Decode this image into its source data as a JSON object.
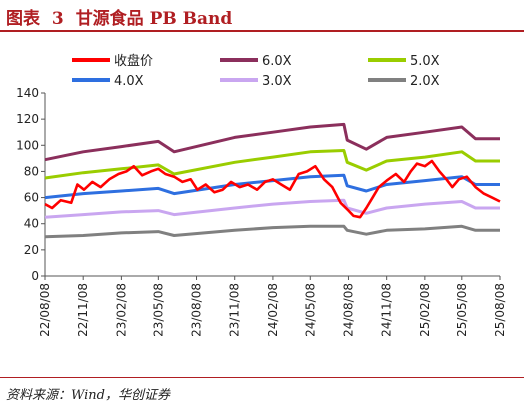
{
  "header": {
    "figure_label": "图表",
    "figure_number": "3",
    "title": "甘源食品 PB Band"
  },
  "footer": {
    "source": "资料来源：Wind，华创证券"
  },
  "colors": {
    "accent": "#b01e22"
  },
  "chart_data": {
    "type": "line",
    "title": "甘源食品 PB Band",
    "xlabel": "",
    "ylabel": "",
    "ylim": [
      0,
      140
    ],
    "yticks": [
      0,
      20,
      40,
      60,
      80,
      100,
      120,
      140
    ],
    "grid": false,
    "legend_position": "top",
    "x_tick_labels": [
      "22/08/08",
      "22/11/08",
      "23/02/08",
      "23/05/08",
      "23/08/08",
      "23/11/08",
      "24/02/08",
      "24/05/08",
      "24/08/08",
      "24/11/08",
      "25/02/08",
      "25/05/08",
      "25/08/08"
    ],
    "x_tick_dates": [
      "2022-08-08",
      "2022-11-08",
      "2023-02-08",
      "2023-05-08",
      "2023-08-08",
      "2023-11-08",
      "2024-02-08",
      "2024-05-08",
      "2024-08-08",
      "2024-11-08",
      "2025-02-08",
      "2025-05-08",
      "2025-08-08"
    ],
    "x_range": [
      "2022-08-08",
      "2025-08-08"
    ],
    "series": [
      {
        "name": "收盘价",
        "color": "#ff0000",
        "dates": [
          "2022-08-08",
          "2022-08-25",
          "2022-09-15",
          "2022-10-10",
          "2022-10-25",
          "2022-11-10",
          "2022-11-30",
          "2022-12-20",
          "2023-01-10",
          "2023-02-01",
          "2023-02-20",
          "2023-03-10",
          "2023-03-30",
          "2023-04-20",
          "2023-05-08",
          "2023-05-25",
          "2023-06-15",
          "2023-07-05",
          "2023-07-25",
          "2023-08-10",
          "2023-08-30",
          "2023-09-20",
          "2023-10-10",
          "2023-10-30",
          "2023-11-20",
          "2023-12-10",
          "2024-01-01",
          "2024-01-20",
          "2024-02-08",
          "2024-02-28",
          "2024-03-20",
          "2024-04-10",
          "2024-04-30",
          "2024-05-20",
          "2024-06-10",
          "2024-06-30",
          "2024-07-20",
          "2024-08-08",
          "2024-08-20",
          "2024-09-05",
          "2024-09-20",
          "2024-10-05",
          "2024-10-20",
          "2024-11-08",
          "2024-11-30",
          "2024-12-20",
          "2025-01-05",
          "2025-01-20",
          "2025-02-08",
          "2025-02-25",
          "2025-03-15",
          "2025-04-01",
          "2025-04-15",
          "2025-05-01",
          "2025-05-20",
          "2025-06-10",
          "2025-06-30",
          "2025-07-20",
          "2025-08-08"
        ],
        "values": [
          55,
          52,
          58,
          56,
          70,
          66,
          72,
          68,
          74,
          78,
          80,
          84,
          77,
          80,
          82,
          78,
          76,
          72,
          74,
          66,
          70,
          64,
          66,
          72,
          68,
          70,
          66,
          72,
          74,
          70,
          66,
          78,
          80,
          84,
          74,
          68,
          56,
          50,
          46,
          45,
          52,
          60,
          68,
          73,
          78,
          72,
          80,
          86,
          84,
          88,
          80,
          74,
          68,
          74,
          76,
          68,
          63,
          60,
          57
        ]
      },
      {
        "name": "6.0X",
        "color": "#8b2f5c",
        "dates": [
          "2022-08-08",
          "2022-11-08",
          "2023-02-08",
          "2023-05-08",
          "2023-06-15",
          "2023-11-08",
          "2024-02-08",
          "2024-05-08",
          "2024-07-28",
          "2024-08-05",
          "2024-09-20",
          "2024-11-08",
          "2025-02-08",
          "2025-05-08",
          "2025-06-10",
          "2025-08-08"
        ],
        "values": [
          89,
          95,
          99,
          103,
          95,
          106,
          110,
          114,
          116,
          104,
          97,
          106,
          110,
          114,
          105,
          105
        ]
      },
      {
        "name": "5.0X",
        "color": "#9acd00",
        "dates": [
          "2022-08-08",
          "2022-11-08",
          "2023-02-08",
          "2023-05-08",
          "2023-06-15",
          "2023-11-08",
          "2024-02-08",
          "2024-05-08",
          "2024-07-28",
          "2024-08-05",
          "2024-09-20",
          "2024-11-08",
          "2025-02-08",
          "2025-05-08",
          "2025-06-10",
          "2025-08-08"
        ],
        "values": [
          75,
          79,
          82,
          85,
          78,
          87,
          91,
          95,
          96,
          87,
          81,
          88,
          91,
          95,
          88,
          88
        ]
      },
      {
        "name": "4.0X",
        "color": "#2e6fe0",
        "dates": [
          "2022-08-08",
          "2022-11-08",
          "2023-02-08",
          "2023-05-08",
          "2023-06-15",
          "2023-11-08",
          "2024-02-08",
          "2024-05-08",
          "2024-07-28",
          "2024-08-05",
          "2024-09-20",
          "2024-11-08",
          "2025-02-08",
          "2025-05-08",
          "2025-06-10",
          "2025-08-08"
        ],
        "values": [
          60,
          63,
          65,
          67,
          63,
          70,
          73,
          76,
          77,
          69,
          65,
          70,
          73,
          76,
          70,
          70
        ]
      },
      {
        "name": "3.0X",
        "color": "#c9a6f0",
        "dates": [
          "2022-08-08",
          "2022-11-08",
          "2023-02-08",
          "2023-05-08",
          "2023-06-15",
          "2023-11-08",
          "2024-02-08",
          "2024-05-08",
          "2024-07-28",
          "2024-08-05",
          "2024-09-20",
          "2024-11-08",
          "2025-02-08",
          "2025-05-08",
          "2025-06-10",
          "2025-08-08"
        ],
        "values": [
          45,
          47,
          49,
          50,
          47,
          52,
          55,
          57,
          58,
          52,
          48,
          52,
          55,
          57,
          52,
          52
        ]
      },
      {
        "name": "2.0X",
        "color": "#808080",
        "dates": [
          "2022-08-08",
          "2022-11-08",
          "2023-02-08",
          "2023-05-08",
          "2023-06-15",
          "2023-11-08",
          "2024-02-08",
          "2024-05-08",
          "2024-07-28",
          "2024-08-05",
          "2024-09-20",
          "2024-11-08",
          "2025-02-08",
          "2025-05-08",
          "2025-06-10",
          "2025-08-08"
        ],
        "values": [
          30,
          31,
          33,
          34,
          31,
          35,
          37,
          38,
          38,
          35,
          32,
          35,
          36,
          38,
          35,
          35
        ]
      }
    ]
  }
}
